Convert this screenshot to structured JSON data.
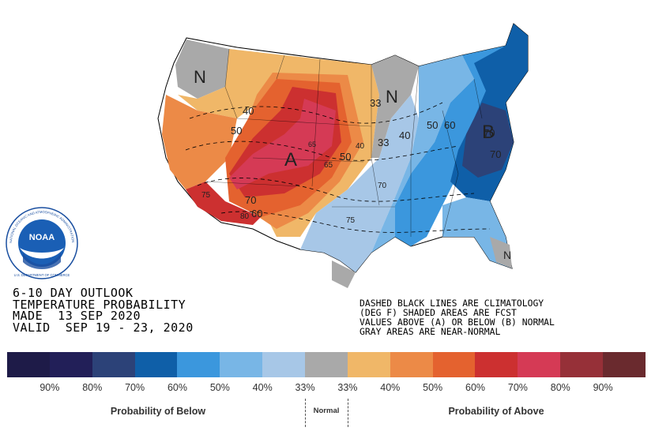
{
  "map": {
    "center_labels": [
      "N",
      "N",
      "A",
      "B",
      "N"
    ],
    "contour_labels": [
      "40",
      "50",
      "33",
      "50",
      "60",
      "40",
      "33",
      "65",
      "70",
      "50",
      "40",
      "65",
      "70",
      "70",
      "60",
      "80",
      "75",
      "70",
      "75"
    ]
  },
  "outlook": {
    "line1": "6-10 DAY OUTLOOK",
    "line2": "TEMPERATURE PROBABILITY",
    "line3": "MADE  13 SEP 2020",
    "line4": "VALID  SEP 19 - 23, 2020"
  },
  "notes": {
    "line1": "DASHED BLACK LINES ARE CLIMATOLOGY",
    "line2": "(DEG F) SHADED AREAS ARE FCST",
    "line3": "VALUES ABOVE (A) OR BELOW (B) NORMAL",
    "line4": "GRAY AREAS ARE NEAR-NORMAL"
  },
  "legend": {
    "colors": [
      "#1e1b48",
      "#221f58",
      "#2c4278",
      "#0f5fa8",
      "#3b97dd",
      "#78b6e6",
      "#a7c7e7",
      "#a9a9a9",
      "#f0b768",
      "#ec8a47",
      "#e4622f",
      "#cc3030",
      "#d53a55",
      "#963038",
      "#6a2a2e"
    ],
    "ticks": [
      "90%",
      "80%",
      "70%",
      "60%",
      "50%",
      "40%",
      "33%",
      "33%",
      "40%",
      "50%",
      "60%",
      "70%",
      "80%",
      "90%"
    ],
    "below_label": "Probability of Below",
    "normal_label": "Normal",
    "above_label": "Probability of Above"
  },
  "logo": {
    "text": "NOAA",
    "ring_text": "NATIONAL OCEANIC AND ATMOSPHERIC ADMINISTRATION",
    "bottom_text": "U.S. DEPARTMENT OF COMMERCE"
  }
}
